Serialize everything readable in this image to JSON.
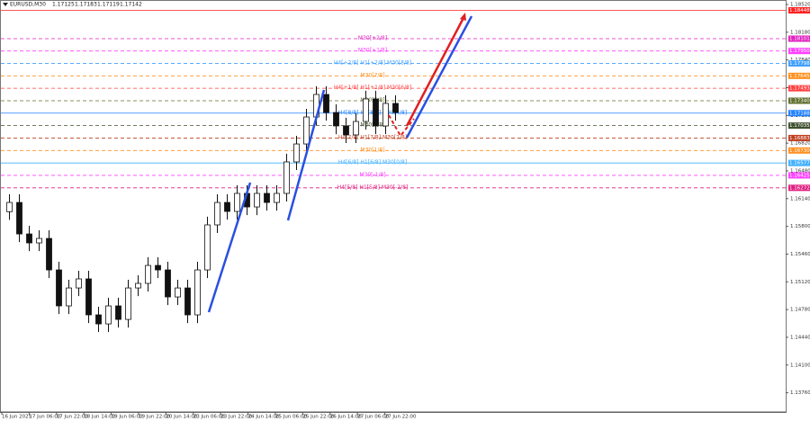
{
  "chart_data": {
    "type": "candlestick",
    "title": "EURUSD,M30",
    "ohlc_header": [
      1.17125,
      1.17183,
      1.17119,
      1.17142
    ],
    "ylim": [
      1.13524,
      1.18575
    ],
    "yticks": [
      {
        "value": 1.1852,
        "label": "1.18520"
      },
      {
        "value": 1.1818,
        "label": "1.18180"
      },
      {
        "value": 1.1784,
        "label": "1.17840"
      },
      {
        "value": 1.175,
        "label": "1.17500"
      },
      {
        "value": 1.1716,
        "label": "1.17160"
      },
      {
        "value": 1.1682,
        "label": "1.16820"
      },
      {
        "value": 1.1648,
        "label": "1.16480"
      },
      {
        "value": 1.1614,
        "label": "1.16140"
      },
      {
        "value": 1.158,
        "label": "1.15800"
      },
      {
        "value": 1.1546,
        "label": "1.15460"
      },
      {
        "value": 1.1512,
        "label": "1.15120"
      },
      {
        "value": 1.1478,
        "label": "1.14780"
      },
      {
        "value": 1.1444,
        "label": "1.14440"
      },
      {
        "value": 1.141,
        "label": "1.14100"
      },
      {
        "value": 1.1376,
        "label": "1.13760"
      }
    ],
    "time_labels": [
      "16 Jun 2025",
      "17 Jun 06:00",
      "17 Jun 22:00",
      "18 Jun 14:00",
      "19 Jun 06:00",
      "19 Jun 22:00",
      "20 Jun 14:00",
      "23 Jun 06:00",
      "23 Jun 22:00",
      "24 Jun 14:00",
      "25 Jun 06:00",
      "25 Jun 22:00",
      "26 Jun 14:00",
      "27 Jun 06:00",
      "27 Jun 22:00"
    ],
    "open": [
      1.1598,
      1.16093,
      1.15707,
      1.15597,
      1.15652,
      1.15266,
      1.14825,
      1.15045,
      1.15156,
      1.14715,
      1.14604,
      1.14825,
      1.14659,
      1.15045,
      1.15101,
      1.15321,
      1.15266,
      1.14935,
      1.15045,
      1.14715,
      1.15266,
      1.15818,
      1.16093,
      1.15983,
      1.16204,
      1.16038,
      1.16204,
      1.16093,
      1.16204,
      1.1659,
      1.1681,
      1.17141,
      1.17417,
      1.17196,
      1.17031,
      1.16921,
      1.17086,
      1.17362,
      1.17031,
      1.17307
    ],
    "high": [
      1.16193,
      1.16193,
      1.15807,
      1.15752,
      1.15752,
      1.15366,
      1.15145,
      1.15256,
      1.15256,
      1.14815,
      1.14925,
      1.14925,
      1.15145,
      1.15201,
      1.15421,
      1.15421,
      1.15366,
      1.15145,
      1.15145,
      1.15366,
      1.15918,
      1.16193,
      1.16193,
      1.16304,
      1.16304,
      1.16304,
      1.16304,
      1.16304,
      1.1669,
      1.1691,
      1.17241,
      1.17517,
      1.17517,
      1.17296,
      1.17131,
      1.17186,
      1.17462,
      1.17462,
      1.17407,
      1.17407
    ],
    "low": [
      1.1588,
      1.15607,
      1.15497,
      1.15497,
      1.15166,
      1.14725,
      1.14725,
      1.14945,
      1.14615,
      1.14504,
      1.14504,
      1.14559,
      1.14559,
      1.14945,
      1.15001,
      1.15166,
      1.14835,
      1.14835,
      1.14615,
      1.14615,
      1.15166,
      1.15718,
      1.15883,
      1.15883,
      1.15938,
      1.15938,
      1.15993,
      1.15993,
      1.16104,
      1.1649,
      1.1671,
      1.17041,
      1.17096,
      1.16931,
      1.16821,
      1.16821,
      1.16986,
      1.16931,
      1.16931,
      1.17096
    ],
    "close": [
      1.16093,
      1.15707,
      1.15597,
      1.15652,
      1.15266,
      1.14825,
      1.15045,
      1.15156,
      1.14715,
      1.14604,
      1.14825,
      1.14659,
      1.15045,
      1.15101,
      1.15321,
      1.15266,
      1.14935,
      1.15045,
      1.14715,
      1.15266,
      1.15818,
      1.16093,
      1.15983,
      1.16204,
      1.16038,
      1.16204,
      1.16093,
      1.16204,
      1.1659,
      1.1681,
      1.17141,
      1.17417,
      1.17196,
      1.17031,
      1.16921,
      1.17086,
      1.17362,
      1.17031,
      1.17307,
      1.17196
    ],
    "candle_color": "#111111",
    "levels": [
      {
        "value": 1.18448,
        "label": "1.18448",
        "color": "#ff2020",
        "style": "solid"
      },
      {
        "value": 1.18101,
        "label": "1.18101",
        "color": "#e020c0",
        "style": "dashed",
        "name": "M30[+2/8]"
      },
      {
        "value": 1.1795,
        "label": "1.17950",
        "color": "#ff40ff",
        "style": "dashed",
        "name": "M30[+1/8]"
      },
      {
        "value": 1.17798,
        "label": "1.17798",
        "color": "#40a0ff",
        "style": "dashed",
        "name": "H4[+2/8] H1[+2/8] M30[8/8]"
      },
      {
        "value": 1.17645,
        "label": "1.17645",
        "color": "#ff9020",
        "style": "dashed",
        "name": "M30[7/8]"
      },
      {
        "value": 1.17493,
        "label": "1.17493",
        "color": "#ff4040",
        "style": "dashed",
        "name": "H4[+1/8] H1[+1/8] M30[6/8]"
      },
      {
        "value": 1.1734,
        "label": "1.17340",
        "color": "#607030",
        "style": "dashed",
        "name": "M30[5/8]"
      },
      {
        "value": 1.17188,
        "label": "1.17188",
        "color": "#2080ff",
        "style": "solid",
        "name": "H4[8/8] H1[8/8] M30[4/8]"
      },
      {
        "value": 1.17035,
        "label": "1.17035",
        "color": "#405030",
        "style": "dashed",
        "name": "M30[3/8]"
      },
      {
        "value": 1.16883,
        "label": "1.16883",
        "color": "#c04020",
        "style": "dashed",
        "name": "H4[7/8] H1[7/8] M30[2/8]"
      },
      {
        "value": 1.1673,
        "label": "1.16730",
        "color": "#ff9020",
        "style": "dashed",
        "name": "M30[1/8]"
      },
      {
        "value": 1.16577,
        "label": "1.16577",
        "color": "#40b0ff",
        "style": "solid",
        "name": "H4[6/8] H1[6/8] M30[0/8]"
      },
      {
        "value": 1.16425,
        "label": "1.16425",
        "color": "#ff40ff",
        "style": "dashed",
        "name": "M30[-1/8]"
      },
      {
        "value": 1.16272,
        "label": "1.16272",
        "color": "#e02080",
        "style": "dashed",
        "name": "H4[5/8] H1[5/8] M30[-2/8]"
      }
    ]
  }
}
